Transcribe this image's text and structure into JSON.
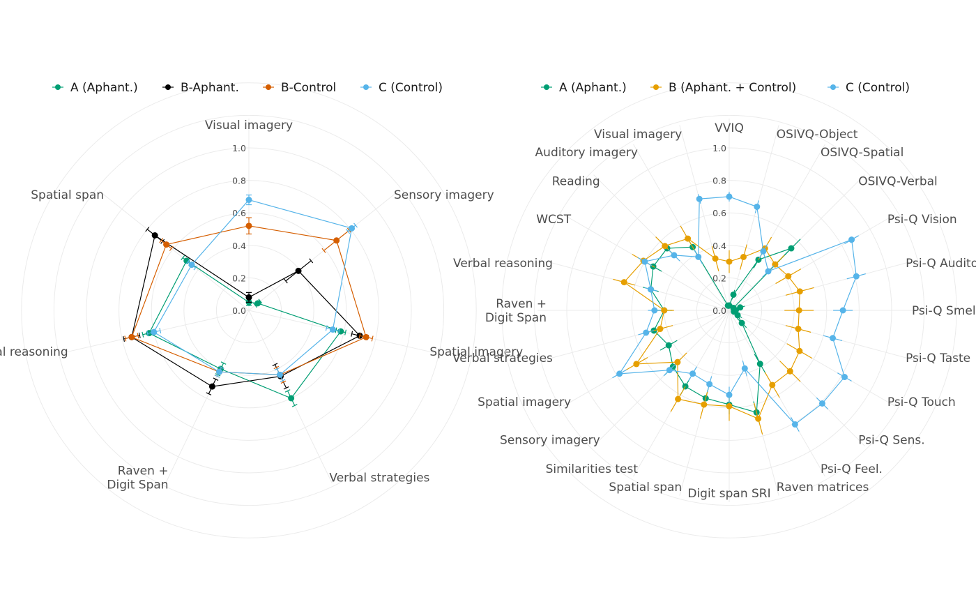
{
  "chart_data": [
    {
      "type": "radar",
      "title": "",
      "rlim": [
        0,
        1
      ],
      "rticks": [
        "0.0",
        "0.2",
        "0.4",
        "0.6",
        "0.8",
        "1.0"
      ],
      "grid": true,
      "legend": "top",
      "categories": [
        "Visual imagery",
        "Sensory imagery",
        "Spatial imagery",
        "Verbal strategies",
        "Raven +\nDigit Span",
        "Verbal reasoning",
        "Spatial span"
      ],
      "series": [
        {
          "name": "A (Aphant.)",
          "color": "#009E73",
          "values": [
            0.05,
            0.07,
            0.58,
            0.6,
            0.4,
            0.63,
            0.49
          ],
          "errors": [
            0.02,
            0.02,
            0.03,
            0.05,
            0.04,
            0.04,
            0.03
          ]
        },
        {
          "name": "B-Aphant.",
          "color": "#000000",
          "values": [
            0.08,
            0.39,
            0.7,
            0.45,
            0.52,
            0.74,
            0.74
          ],
          "errors": [
            0.03,
            0.1,
            0.05,
            0.08,
            0.05,
            0.05,
            0.06
          ]
        },
        {
          "name": "B-Control",
          "color": "#D55E00",
          "values": [
            0.52,
            0.69,
            0.74,
            0.44,
            0.42,
            0.74,
            0.65
          ],
          "errors": [
            0.05,
            0.1,
            0.04,
            0.05,
            0.03,
            0.04,
            0.04
          ]
        },
        {
          "name": "C (Control)",
          "color": "#56B4E9",
          "values": [
            0.68,
            0.81,
            0.53,
            0.44,
            0.42,
            0.6,
            0.45
          ],
          "errors": [
            0.03,
            0.03,
            0.04,
            0.04,
            0.03,
            0.04,
            0.03
          ]
        }
      ]
    },
    {
      "type": "radar",
      "title": "",
      "rlim": [
        0,
        1
      ],
      "rticks": [
        "0.0",
        "0.2",
        "0.4",
        "0.6",
        "0.8",
        "1.0"
      ],
      "grid": true,
      "legend": "top",
      "categories": [
        "VVIQ",
        "OSIVQ-Object",
        "OSIVQ-Spatial",
        "OSIVQ-Verbal",
        "Psi-Q Vision",
        "Psi-Q Auditory",
        "Psi-Q Smell",
        "Psi-Q Taste",
        "Psi-Q Touch",
        "Psi-Q Sens.",
        "Psi-Q Feel.",
        "Raven matrices",
        "Digit span SRI",
        "Spatial span",
        "Similarities test",
        "Sensory imagery",
        "Spatial imagery",
        "Verbal strategies",
        "Raven +\nDigit Span",
        "Verbal reasoning",
        "WCST",
        "Reading",
        "Auditory imagery",
        "Visual imagery"
      ],
      "series": [
        {
          "name": "A (Aphant.)",
          "color": "#009E73",
          "values": [
            0.03,
            0.1,
            0.36,
            0.54,
            0.03,
            0.07,
            0.04,
            0.03,
            0.06,
            0.11,
            0.38,
            0.65,
            0.58,
            0.56,
            0.54,
            0.49,
            0.43,
            0.48,
            0.4,
            0.5,
            0.54,
            0.54,
            0.45,
            0.03
          ],
          "errors": [
            0.02,
            0.03,
            0.06,
            0.08,
            0.02,
            0.03,
            0.02,
            0.02,
            0.03,
            0.04,
            0.07,
            0.07,
            0.06,
            0.06,
            0.06,
            0.07,
            0.06,
            0.06,
            0.05,
            0.05,
            0.06,
            0.06,
            0.06,
            0.02
          ]
        },
        {
          "name": "B (Aphant. + Control)",
          "color": "#E69F00",
          "values": [
            0.3,
            0.34,
            0.44,
            0.4,
            0.42,
            0.45,
            0.43,
            0.44,
            0.5,
            0.53,
            0.53,
            0.69,
            0.59,
            0.6,
            0.63,
            0.45,
            0.66,
            0.44,
            0.4,
            0.67,
            0.61,
            0.56,
            0.51,
            0.33
          ],
          "errors": [
            0.07,
            0.08,
            0.08,
            0.08,
            0.09,
            0.09,
            0.09,
            0.08,
            0.09,
            0.09,
            0.09,
            0.1,
            0.09,
            0.09,
            0.09,
            0.08,
            0.08,
            0.08,
            0.06,
            0.07,
            0.08,
            0.08,
            0.09,
            0.08
          ]
        },
        {
          "name": "C (Control)",
          "color": "#56B4E9",
          "values": [
            0.7,
            0.66,
            0.42,
            0.34,
            0.87,
            0.81,
            0.7,
            0.66,
            0.82,
            0.81,
            0.81,
            0.37,
            0.52,
            0.47,
            0.45,
            0.52,
            0.78,
            0.53,
            0.46,
            0.5,
            0.6,
            0.48,
            0.38,
            0.71
          ],
          "errors": [
            0.03,
            0.04,
            0.05,
            0.05,
            0.05,
            0.06,
            0.06,
            0.06,
            0.05,
            0.05,
            0.05,
            0.05,
            0.05,
            0.05,
            0.05,
            0.05,
            0.05,
            0.05,
            0.04,
            0.04,
            0.05,
            0.05,
            0.05,
            0.03
          ]
        }
      ]
    }
  ]
}
